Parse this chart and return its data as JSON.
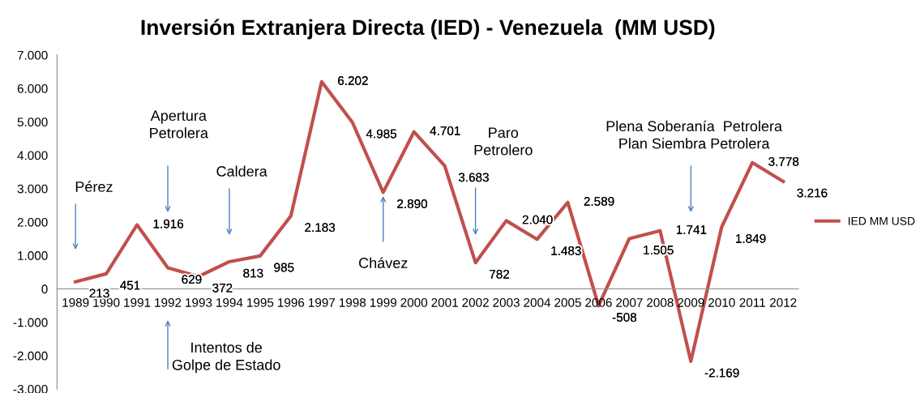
{
  "chart_data": {
    "type": "line",
    "title": "Inversión Extranjera Directa (IED) - Venezuela  (MM USD)",
    "categories": [
      "1989",
      "1990",
      "1991",
      "1992",
      "1993",
      "1994",
      "1995",
      "1996",
      "1997",
      "1998",
      "1999",
      "2000",
      "2001",
      "2002",
      "2003",
      "2004",
      "2005",
      "2006",
      "2007",
      "2008",
      "2009",
      "2010",
      "2011",
      "2012"
    ],
    "series": [
      {
        "name": "IED MM USD",
        "color": "#c0504d",
        "values": [
          213,
          451,
          1916,
          629,
          372,
          813,
          985,
          2183,
          6202,
          4985,
          2890,
          4701,
          3683,
          782,
          2040,
          1483,
          2589,
          -508,
          1505,
          1741,
          -2169,
          1849,
          3778,
          3216
        ],
        "value_labels": [
          "213",
          "451",
          "1.916",
          "629",
          "372",
          "813",
          "985",
          "2.183",
          "6.202",
          "4.985",
          "2.890",
          "4.701",
          "3.683",
          "782",
          "2.040",
          "1.483",
          "2.589",
          "-508",
          "1.505",
          "1.741",
          "-2.169",
          "1.849",
          "3.778",
          "3.216"
        ]
      }
    ],
    "ylim": [
      -3000,
      7000
    ],
    "yticks": [
      {
        "value": -3000,
        "label": "-3.000"
      },
      {
        "value": -2000,
        "label": "-2.000"
      },
      {
        "value": -1000,
        "label": "-1.000"
      },
      0,
      {
        "value": 1000,
        "label": "1.000"
      },
      {
        "value": 2000,
        "label": "2.000"
      },
      {
        "value": 3000,
        "label": "3.000"
      },
      {
        "value": 4000,
        "label": "4.000"
      },
      {
        "value": 5000,
        "label": "5.000"
      },
      {
        "value": 6000,
        "label": "6.000"
      },
      {
        "value": 7000,
        "label": "7.000"
      }
    ],
    "annotations": [
      "Pérez",
      "Apertura\nPetrolera",
      "Caldera",
      "Chávez",
      "Paro\nPetrolero",
      "Plena Soberanía  Petrolera\nPlan Siembra Petrolera",
      "Intentos de\nGolpe de Estado"
    ],
    "grid": false,
    "legend": "right",
    "marker": "none",
    "line_style": "solid"
  }
}
